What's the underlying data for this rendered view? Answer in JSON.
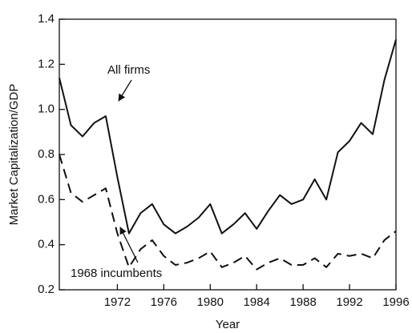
{
  "chart_data": {
    "type": "line",
    "xlabel": "Year",
    "ylabel": "Market Capitalization/GDP",
    "x": [
      1967,
      1968,
      1969,
      1970,
      1971,
      1972,
      1973,
      1974,
      1975,
      1976,
      1977,
      1978,
      1979,
      1980,
      1981,
      1982,
      1983,
      1984,
      1985,
      1986,
      1987,
      1988,
      1989,
      1990,
      1991,
      1992,
      1993,
      1994,
      1995,
      1996
    ],
    "series": [
      {
        "name": "All firms",
        "color": "#111111",
        "dash": false,
        "values": [
          1.14,
          0.93,
          0.88,
          0.94,
          0.97,
          0.7,
          0.45,
          0.54,
          0.58,
          0.49,
          0.45,
          0.48,
          0.52,
          0.58,
          0.45,
          0.49,
          0.54,
          0.47,
          0.55,
          0.62,
          0.58,
          0.6,
          0.69,
          0.6,
          0.81,
          0.86,
          0.94,
          0.89,
          1.13,
          1.31
        ]
      },
      {
        "name": "1968 incumbents",
        "color": "#111111",
        "dash": true,
        "values": [
          0.8,
          0.63,
          0.59,
          0.62,
          0.65,
          0.45,
          0.3,
          0.38,
          0.42,
          0.35,
          0.31,
          0.32,
          0.34,
          0.37,
          0.3,
          0.32,
          0.35,
          0.29,
          0.32,
          0.34,
          0.31,
          0.31,
          0.34,
          0.3,
          0.36,
          0.35,
          0.36,
          0.34,
          0.42,
          0.46
        ]
      }
    ],
    "xlim": [
      1967,
      1996
    ],
    "xticks": [
      1972,
      1976,
      1980,
      1984,
      1988,
      1992,
      1996
    ],
    "ylim": [
      0.2,
      1.4
    ],
    "yticks": [
      0.2,
      0.4,
      0.6,
      0.8,
      {
        "value": 1,
        "label": "1.0"
      },
      1.2,
      1.4
    ],
    "grid": false
  }
}
